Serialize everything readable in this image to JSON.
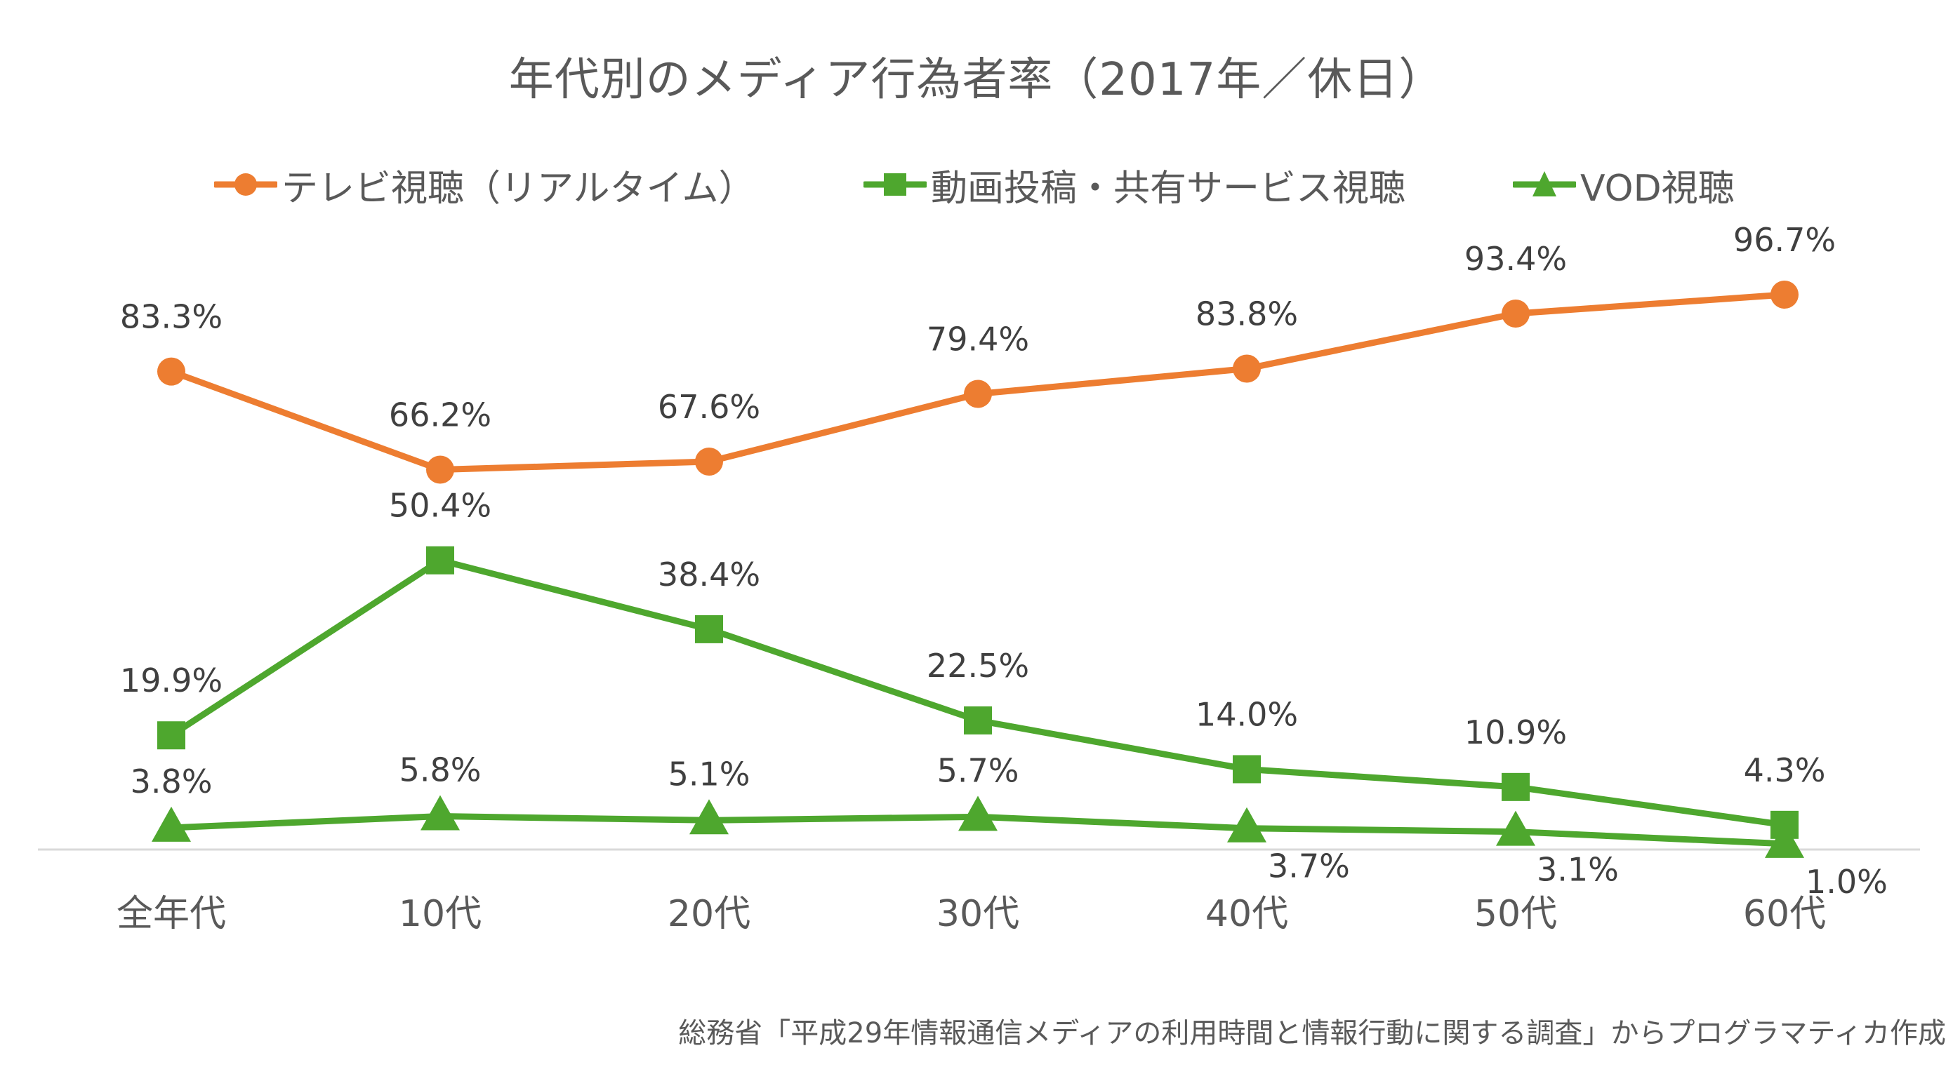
{
  "chart_data": {
    "type": "line",
    "title": "年代別のメディア行為者率（2017年／休日）",
    "categories": [
      "全年代",
      "10代",
      "20代",
      "30代",
      "40代",
      "50代",
      "60代"
    ],
    "xlabel": "",
    "ylabel": "",
    "ylim": [
      0,
      100
    ],
    "grid": false,
    "legend_position": "top",
    "series": [
      {
        "name": "テレビ視聴（リアルタイム）",
        "marker": "circle",
        "color": "#ED7D31",
        "values": [
          83.3,
          66.2,
          67.6,
          79.4,
          83.8,
          93.4,
          96.7
        ],
        "labels": [
          "83.3%",
          "66.2%",
          "67.6%",
          "79.4%",
          "83.8%",
          "93.4%",
          "96.7%"
        ],
        "label_position": [
          "above",
          "above",
          "above",
          "above",
          "above",
          "above",
          "above"
        ]
      },
      {
        "name": "動画投稿・共有サービス視聴",
        "marker": "square",
        "color": "#4EA72E",
        "values": [
          19.9,
          50.4,
          38.4,
          22.5,
          14.0,
          10.9,
          4.3
        ],
        "labels": [
          "19.9%",
          "50.4%",
          "38.4%",
          "22.5%",
          "14.0%",
          "10.9%",
          "4.3%"
        ],
        "label_position": [
          "above",
          "above",
          "above",
          "above",
          "above",
          "above",
          "above"
        ]
      },
      {
        "name": "VOD視聴",
        "marker": "triangle",
        "color": "#4EA72E",
        "values": [
          3.8,
          5.8,
          5.1,
          5.7,
          3.7,
          3.1,
          1.0
        ],
        "labels": [
          "3.8%",
          "5.8%",
          "5.1%",
          "5.7%",
          "3.7%",
          "3.1%",
          "1.0%"
        ],
        "label_position": [
          "above",
          "above",
          "above",
          "above",
          "below-right",
          "below-right",
          "below-right"
        ]
      }
    ],
    "source_note": "総務省「平成29年情報通信メディアの利用時間と情報行動に関する調査」からプログラマティカ作成"
  }
}
